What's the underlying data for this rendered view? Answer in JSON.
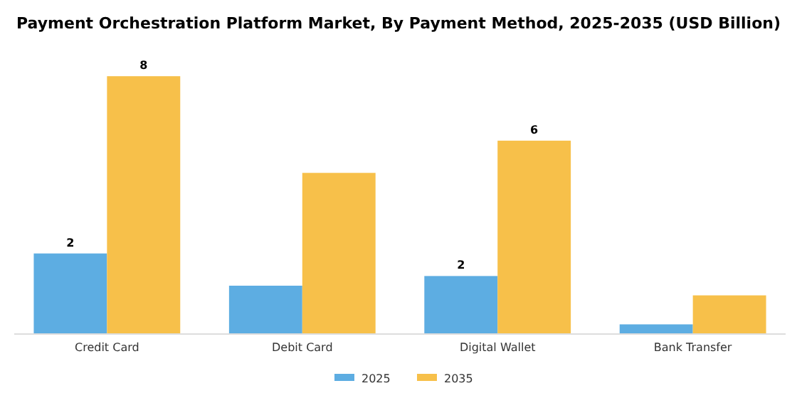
{
  "chart_data": {
    "type": "bar",
    "title": "Payment Orchestration Platform Market, By Payment Method, 2025-2035 (USD Billion)",
    "categories": [
      "Credit Card",
      "Debit Card",
      "Digital Wallet",
      "Bank Transfer"
    ],
    "series": [
      {
        "name": "2025",
        "color": "#5dade2",
        "values": [
          2.5,
          1.5,
          1.8,
          0.3
        ],
        "value_labels": [
          "2",
          null,
          "2",
          null
        ]
      },
      {
        "name": "2035",
        "color": "#f7c04a",
        "values": [
          8.0,
          5.0,
          6.0,
          1.2
        ],
        "value_labels": [
          "8",
          null,
          "6",
          null
        ]
      }
    ],
    "tick_labels": "x",
    "legend": "bottom"
  }
}
